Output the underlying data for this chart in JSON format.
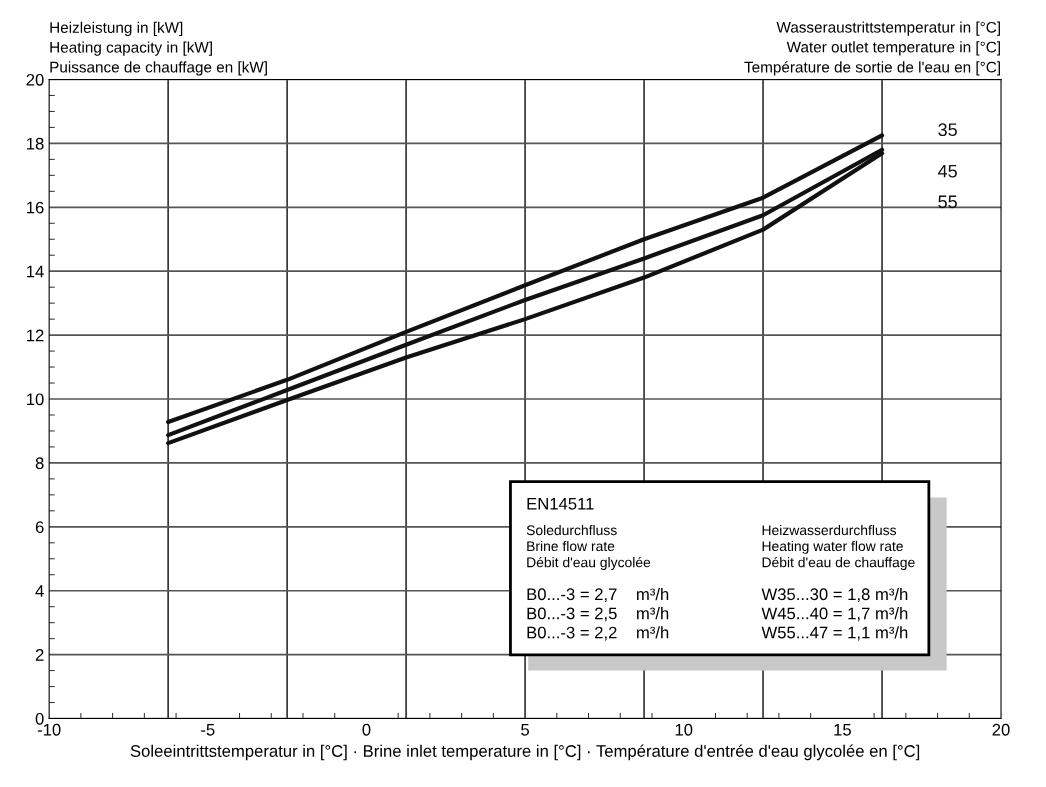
{
  "chart_data": {
    "type": "line",
    "ylabel": "Heizleistung in [kW]\nHeating capacity in [kW]\nPuissance de chauffage en [kW]",
    "legend_title": "Wasseraustrittstemperatur in [°C]\nWater outlet temperature in [°C]\nTempérature de sortie de l'eau en [°C]",
    "xlabel": "Soleeintrittstemperatur in [°C] · Brine inlet temperature in [°C] · Température d'entrée d'eau glycolée en [°C]",
    "x": [
      -6.25,
      -2.5,
      1.25,
      5,
      8.75,
      12.5,
      16.25
    ],
    "series": [
      {
        "name": "35",
        "color": "#111111",
        "values": [
          9.28,
          10.6,
          12.1,
          13.56,
          15.0,
          16.3,
          18.25
        ]
      },
      {
        "name": "45",
        "color": "#111111",
        "values": [
          8.87,
          10.28,
          11.7,
          13.1,
          14.4,
          15.75,
          17.8
        ]
      },
      {
        "name": "55",
        "color": "#111111",
        "values": [
          8.62,
          9.97,
          11.3,
          12.5,
          13.8,
          15.3,
          17.69
        ]
      }
    ],
    "xlim": [
      -10,
      20
    ],
    "xticks": [
      -10,
      -5,
      0,
      5,
      10,
      15,
      20
    ],
    "ylim": [
      0,
      20
    ],
    "yticks": [
      0,
      2,
      4,
      6,
      8,
      10,
      12,
      14,
      16,
      18,
      20
    ],
    "grid": "y",
    "marker": "none",
    "line_style": "solid",
    "ref_lines": [
      {
        "axis": "x",
        "value": -6.25,
        "color": "#333333"
      },
      {
        "axis": "x",
        "value": -2.5,
        "color": "#333333"
      },
      {
        "axis": "x",
        "value": 1.25,
        "color": "#333333"
      },
      {
        "axis": "x",
        "value": 5,
        "color": "#333333"
      },
      {
        "axis": "x",
        "value": 8.75,
        "color": "#333333"
      },
      {
        "axis": "x",
        "value": 12.5,
        "color": "#333333"
      },
      {
        "axis": "x",
        "value": 16.25,
        "color": "#333333"
      }
    ],
    "annotations": [
      "EN14511",
      "Soledurchfluss\nBrine flow rate\nDébit d'eau glycolée",
      "Heizwasserdurchfluss\nHeating water flow rate\nDébit d'eau de chauffage",
      "B0...-3 = 2,7    m³/h\nB0...-3 = 2,5    m³/h\nB0...-3 = 2,2    m³/h",
      "W35...30 = 1,8 m³/h\nW45...40 = 1,7 m³/h\nW55...47 = 1,1 m³/h"
    ]
  }
}
